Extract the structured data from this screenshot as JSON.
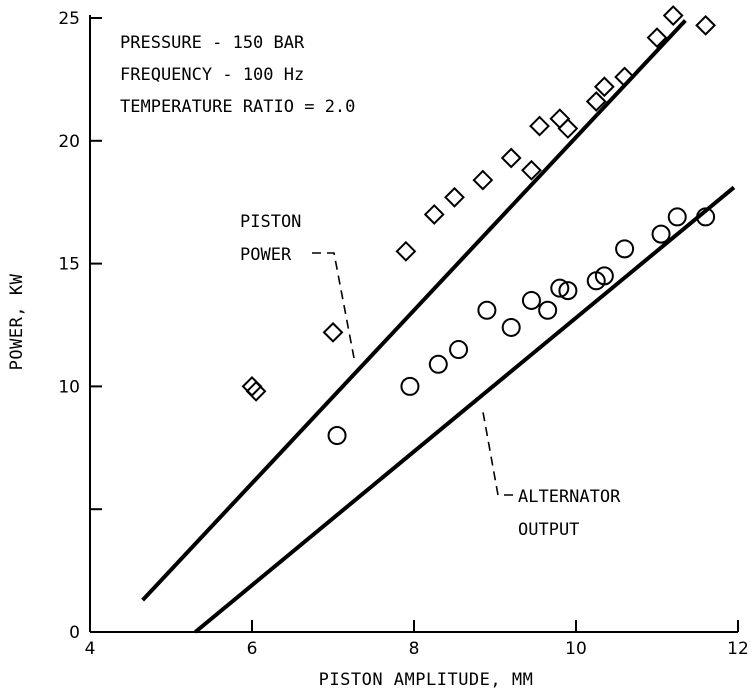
{
  "chart_data": {
    "type": "scatter",
    "title": "",
    "xlabel": "PISTON AMPLITUDE, MM",
    "ylabel": "POWER, KW",
    "xlim": [
      4,
      12
    ],
    "ylim": [
      0,
      25
    ],
    "xticks": [
      4,
      6,
      8,
      10,
      12
    ],
    "yticks": [
      0,
      5,
      10,
      15,
      20,
      25
    ],
    "xtick_labels": [
      "4",
      "6",
      "8",
      "10",
      "12"
    ],
    "ytick_labels": [
      "0",
      "",
      "10",
      "15",
      "20",
      "25"
    ],
    "grid": false,
    "conditions": [
      "PRESSURE - 150 BAR",
      "FREQUENCY - 100 Hz",
      "TEMPERATURE RATIO = 2.0"
    ],
    "series": [
      {
        "name": "PISTON POWER",
        "label_lines": [
          "PISTON",
          "POWER"
        ],
        "marker": "diamond",
        "x": [
          6.0,
          6.05,
          7.0,
          7.9,
          8.25,
          8.5,
          8.85,
          9.2,
          9.45,
          9.55,
          9.8,
          9.9,
          10.25,
          10.35,
          10.6,
          11.0,
          11.2,
          11.6
        ],
        "y": [
          10.0,
          9.8,
          12.2,
          15.5,
          17.0,
          17.7,
          18.4,
          19.3,
          18.8,
          20.6,
          20.9,
          20.5,
          21.6,
          22.2,
          22.6,
          24.2,
          25.1,
          24.7
        ],
        "fit_line": {
          "x": [
            4.65,
            11.35
          ],
          "y": [
            1.3,
            24.9
          ]
        }
      },
      {
        "name": "ALTERNATOR OUTPUT",
        "label_lines": [
          "ALTERNATOR",
          "OUTPUT"
        ],
        "marker": "circle",
        "x": [
          7.05,
          7.95,
          8.3,
          8.55,
          8.9,
          9.2,
          9.45,
          9.65,
          9.8,
          9.9,
          10.25,
          10.35,
          10.6,
          11.05,
          11.25,
          11.6
        ],
        "y": [
          8.0,
          10.0,
          10.9,
          11.5,
          13.1,
          12.4,
          13.5,
          13.1,
          14.0,
          13.9,
          14.3,
          14.5,
          15.6,
          16.2,
          16.9,
          16.9
        ],
        "fit_line": {
          "x": [
            5.3,
            11.95
          ],
          "y": [
            0.0,
            18.1
          ]
        }
      }
    ]
  }
}
